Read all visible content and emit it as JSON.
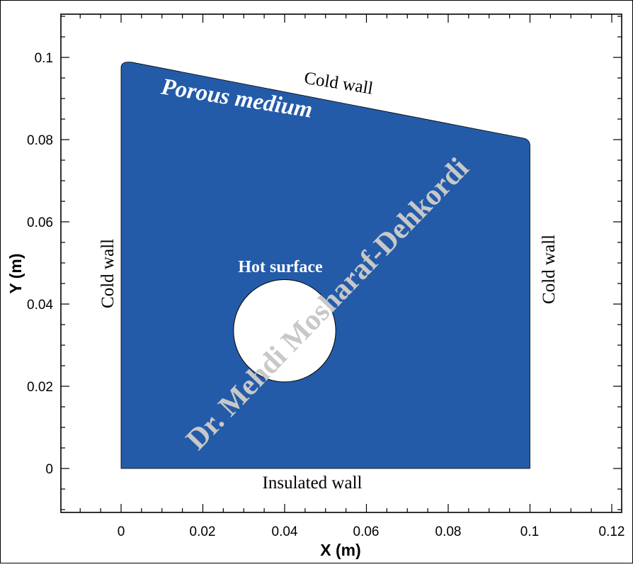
{
  "figure": {
    "xlabel": "X (m)",
    "ylabel": "Y (m)",
    "x_ticks": [
      "0",
      "0.02",
      "0.04",
      "0.06",
      "0.08",
      "0.1",
      "0.12"
    ],
    "y_ticks": [
      "0",
      "0.02",
      "0.04",
      "0.06",
      "0.08",
      "0.1"
    ],
    "x_range": [
      -0.014,
      0.124
    ],
    "y_range": [
      -0.011,
      0.112
    ]
  },
  "domain_shape": {
    "bottom_left": [
      0.0,
      0.0
    ],
    "bottom_right": [
      0.1,
      0.0
    ],
    "top_right": [
      0.1,
      0.08
    ],
    "top_left": [
      0.0,
      0.099
    ],
    "circle_center": [
      0.04,
      0.0335
    ],
    "circle_radius": 0.0125,
    "fill_color": "#235ba8"
  },
  "labels": {
    "porous": "Porous medium",
    "top_wall": "Cold wall",
    "left_wall": "Cold wall",
    "right_wall": "Cold wall",
    "bottom_wall": "Insulated wall",
    "hot_surface": "Hot surface",
    "watermark": "Dr. Mehdi Mosharaf-Dehkordi"
  },
  "colors": {
    "domain": "#235ba8",
    "watermark": "#c8c8c8",
    "axis": "#000000"
  }
}
